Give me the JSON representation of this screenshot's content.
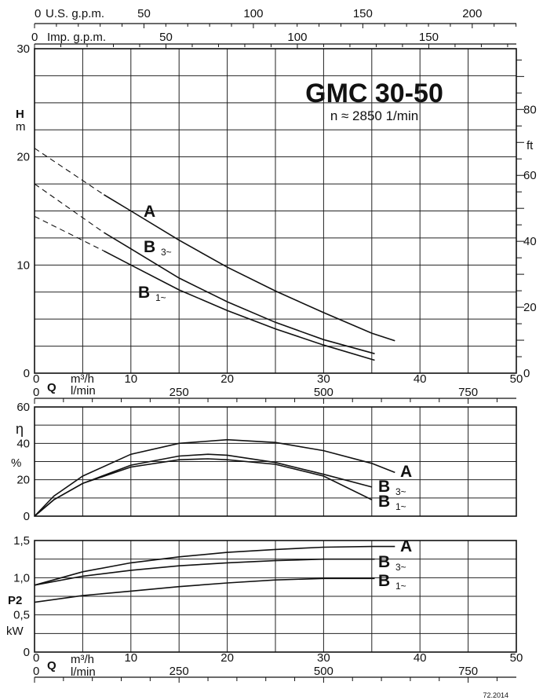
{
  "chart_data": [
    {
      "type": "line",
      "panel": "head",
      "title": "GMC 30-50",
      "subtitle": "n ≈ 2850 1/min",
      "xlabel": "Q",
      "x_unit_primary": "m³/h",
      "x_unit_secondary": "l/min",
      "ylabel": "H",
      "y_unit": "m",
      "y2_unit": "ft",
      "top_axis_1_label": "U.S. g.p.m.",
      "top_axis_2_label": "Imp. g.p.m.",
      "xlim": [
        0,
        50
      ],
      "ylim": [
        0,
        30
      ],
      "x_ticks": [
        "0",
        "10",
        "20",
        "30",
        "40",
        "50"
      ],
      "x2_ticks": [
        "0",
        "250",
        "500",
        "750"
      ],
      "y_ticks": [
        "0",
        "10",
        "20",
        "30"
      ],
      "y2_ticks": [
        "0",
        "20",
        "40",
        "60",
        "80"
      ],
      "top1_ticks": [
        "0",
        "50",
        "100",
        "150",
        "200"
      ],
      "top2_ticks": [
        "0",
        "50",
        "100",
        "150"
      ],
      "series": [
        {
          "name": "A",
          "label_main": "A",
          "label_sub": "",
          "x": [
            7.2,
            10,
            15,
            20,
            25,
            30,
            35,
            37.4
          ],
          "y": [
            16.5,
            15.0,
            12.3,
            9.8,
            7.6,
            5.6,
            3.7,
            3.0
          ]
        },
        {
          "name": "B 3~",
          "label_main": "B",
          "label_sub": "3~",
          "x": [
            7.2,
            10,
            15,
            20,
            25,
            30,
            35.3
          ],
          "y": [
            13.0,
            11.5,
            8.8,
            6.6,
            4.7,
            3.1,
            1.8
          ]
        },
        {
          "name": "B 1~",
          "label_main": "B",
          "label_sub": "1~",
          "x": [
            7.2,
            10,
            15,
            20,
            25,
            30,
            35.3
          ],
          "y": [
            11.3,
            10.0,
            7.7,
            5.8,
            4.1,
            2.6,
            1.2
          ]
        }
      ],
      "extrapolated_segments": [
        {
          "series": "A",
          "x": [
            0,
            7.2
          ],
          "y": [
            20.8,
            16.5
          ]
        },
        {
          "series": "B 3~",
          "x": [
            0,
            7.2
          ],
          "y": [
            17.5,
            13.0
          ]
        },
        {
          "series": "B 1~",
          "x": [
            0,
            7.2
          ],
          "y": [
            14.5,
            11.3
          ]
        }
      ]
    },
    {
      "type": "line",
      "panel": "efficiency",
      "ylabel": "η",
      "y_unit": "%",
      "xlim": [
        0,
        50
      ],
      "ylim": [
        0,
        60
      ],
      "y_ticks": [
        "0",
        "20",
        "40",
        "60"
      ],
      "series": [
        {
          "name": "A",
          "label_main": "A",
          "label_sub": "",
          "x": [
            0,
            2,
            5,
            10,
            15,
            20,
            25,
            30,
            35,
            37.4
          ],
          "y": [
            0,
            11,
            22,
            34,
            40,
            42,
            40.5,
            36,
            29,
            24
          ]
        },
        {
          "name": "B 3~",
          "label_main": "B",
          "label_sub": "3~",
          "x": [
            0,
            2,
            5,
            10,
            15,
            18,
            20,
            25,
            30,
            35
          ],
          "y": [
            0,
            9,
            18,
            28,
            33,
            34,
            33.5,
            29.5,
            23,
            16
          ]
        },
        {
          "name": "B 1~",
          "label_main": "B",
          "label_sub": "1~",
          "x": [
            0,
            2,
            5,
            10,
            15,
            18,
            20,
            25,
            30,
            35
          ],
          "y": [
            0,
            9,
            18,
            27,
            31,
            31.5,
            31,
            28.5,
            22,
            9
          ]
        }
      ]
    },
    {
      "type": "line",
      "panel": "power",
      "ylabel": "P2",
      "y_unit": "kW",
      "xlabel": "Q",
      "x_unit_primary": "m³/h",
      "x_unit_secondary": "l/min",
      "xlim": [
        0,
        50
      ],
      "ylim": [
        0,
        1.5
      ],
      "y_ticks": [
        "0",
        "0,5",
        "1,0",
        "1,5"
      ],
      "x_ticks": [
        "0",
        "10",
        "20",
        "30",
        "40",
        "50"
      ],
      "x2_ticks": [
        "0",
        "250",
        "500",
        "750"
      ],
      "series": [
        {
          "name": "A",
          "label_main": "A",
          "label_sub": "",
          "x": [
            0,
            5,
            10,
            15,
            20,
            25,
            30,
            35,
            37.4
          ],
          "y": [
            0.9,
            1.08,
            1.2,
            1.28,
            1.34,
            1.38,
            1.41,
            1.42,
            1.42
          ]
        },
        {
          "name": "B 3~",
          "label_main": "B",
          "label_sub": "3~",
          "x": [
            0,
            5,
            10,
            15,
            20,
            25,
            30,
            35.3
          ],
          "y": [
            0.9,
            1.02,
            1.1,
            1.16,
            1.2,
            1.23,
            1.25,
            1.25
          ]
        },
        {
          "name": "B 1~",
          "label_main": "B",
          "label_sub": "1~",
          "x": [
            0,
            5,
            10,
            15,
            20,
            25,
            30,
            35.3
          ],
          "y": [
            0.67,
            0.76,
            0.82,
            0.88,
            0.93,
            0.97,
            0.99,
            0.99
          ]
        }
      ]
    }
  ],
  "footer": {
    "code": "72.2014"
  }
}
